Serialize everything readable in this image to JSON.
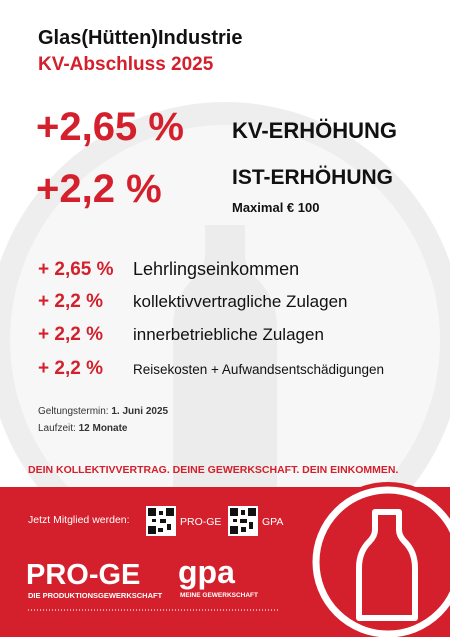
{
  "header": {
    "title": "Glas(Hütten)Industrie",
    "subtitle": "KV-Abschluss 2025"
  },
  "highlights": [
    {
      "percent": "+2,65 %",
      "label": "KV-ERHÖHUNG"
    },
    {
      "percent": "+2,2 %",
      "label": "IST-ERHÖHUNG",
      "note": "Maximal € 100"
    }
  ],
  "items": [
    {
      "percent": "+ 2,65 %",
      "label": "Lehrlingseinkommen"
    },
    {
      "percent": "+ 2,2 %",
      "label": "kollektivvertragliche Zulagen"
    },
    {
      "percent": "+ 2,2 %",
      "label": "innerbetriebliche Zulagen"
    },
    {
      "percent": "+ 2,2 %",
      "label": "Reisekosten + Aufwandsentschädigungen"
    }
  ],
  "terms": [
    {
      "label": "Geltungstermin:",
      "value": "1. Juni 2025"
    },
    {
      "label": "Laufzeit:",
      "value": "12 Monate"
    }
  ],
  "slogan": "DEIN KOLLEKTIVVERTRAG. DEINE GEWERKSCHAFT. DEIN EINKOMMEN.",
  "footer": {
    "join": "Jetzt Mitglied werden:",
    "qr_labels": [
      "PRO-GE",
      "GPA"
    ],
    "logos": [
      {
        "name": "PRO-GE",
        "tagline": "DIE PRODUKTIONSGEWERKSCHAFT"
      },
      {
        "name": "gpa",
        "tagline": "MEINE GEWERKSCHAFT"
      }
    ]
  }
}
